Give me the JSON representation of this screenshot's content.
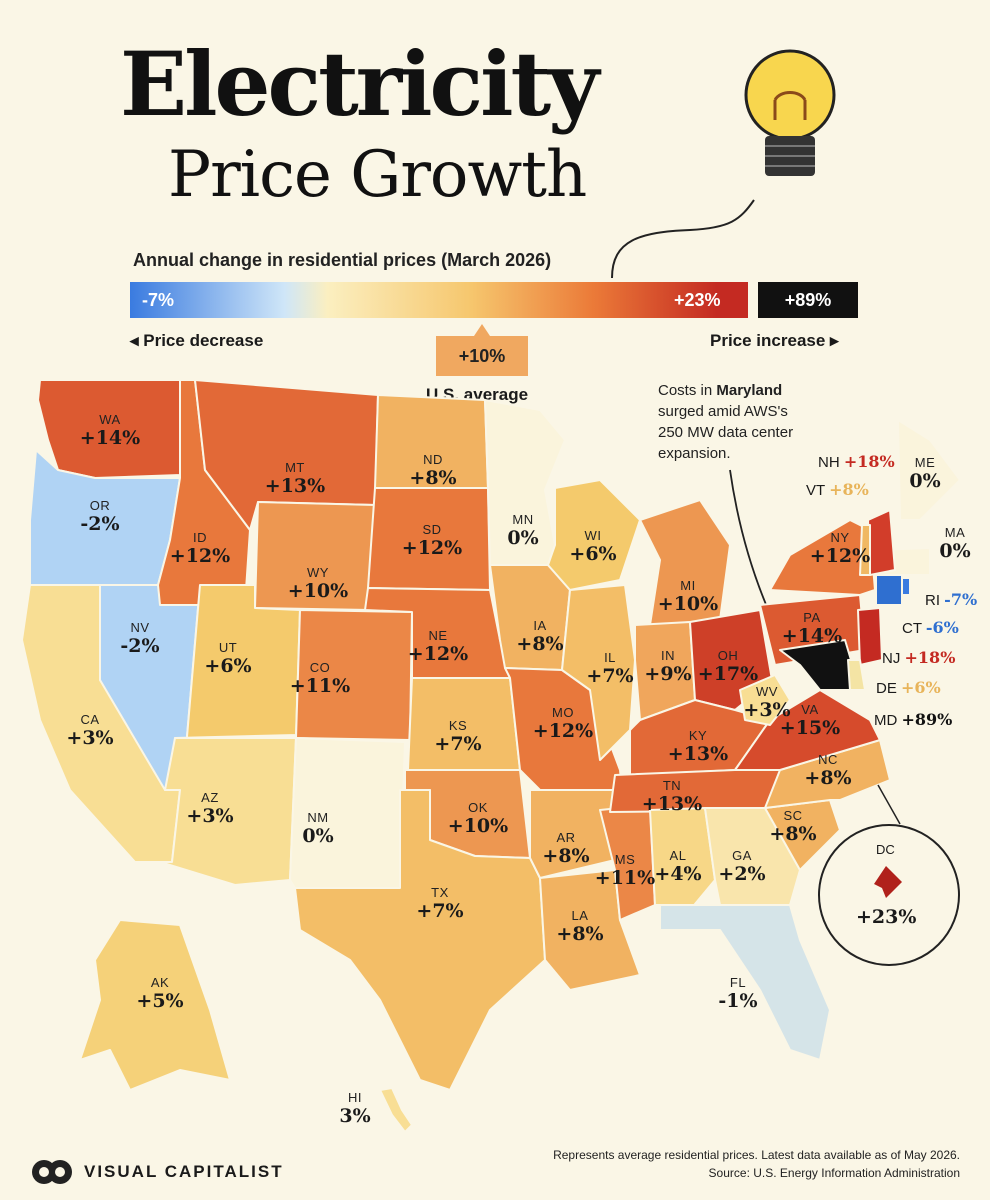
{
  "header": {
    "title_line1": "Electricity",
    "title_line2": "Price Growth",
    "subtitle": "Annual change in residential prices (March 2026)"
  },
  "legend": {
    "min_label": "-7%",
    "max_label": "+23%",
    "outlier_label": "+89%",
    "decrease_label": "◂ Price decrease",
    "increase_label": "Price increase ▸",
    "average_value": "+10%",
    "average_label": "U.S. average"
  },
  "annotation": {
    "prefix": "Costs in ",
    "state": "Maryland",
    "text": "surged amid AWS's 250 MW data center expansion."
  },
  "states": [
    {
      "abbr": "WA",
      "value": "+14%"
    },
    {
      "abbr": "OR",
      "value": "-2%"
    },
    {
      "abbr": "CA",
      "value": "+3%"
    },
    {
      "abbr": "NV",
      "value": "-2%"
    },
    {
      "abbr": "ID",
      "value": "+12%"
    },
    {
      "abbr": "MT",
      "value": "+13%"
    },
    {
      "abbr": "WY",
      "value": "+10%"
    },
    {
      "abbr": "UT",
      "value": "+6%"
    },
    {
      "abbr": "AZ",
      "value": "+3%"
    },
    {
      "abbr": "CO",
      "value": "+11%"
    },
    {
      "abbr": "NM",
      "value": "0%"
    },
    {
      "abbr": "ND",
      "value": "+8%"
    },
    {
      "abbr": "SD",
      "value": "+12%"
    },
    {
      "abbr": "NE",
      "value": "+12%"
    },
    {
      "abbr": "KS",
      "value": "+7%"
    },
    {
      "abbr": "OK",
      "value": "+10%"
    },
    {
      "abbr": "TX",
      "value": "+7%"
    },
    {
      "abbr": "MN",
      "value": "0%"
    },
    {
      "abbr": "IA",
      "value": "+8%"
    },
    {
      "abbr": "MO",
      "value": "+12%"
    },
    {
      "abbr": "AR",
      "value": "+8%"
    },
    {
      "abbr": "LA",
      "value": "+8%"
    },
    {
      "abbr": "WI",
      "value": "+6%"
    },
    {
      "abbr": "IL",
      "value": "+7%"
    },
    {
      "abbr": "MS",
      "value": "+11%"
    },
    {
      "abbr": "MI",
      "value": "+10%"
    },
    {
      "abbr": "IN",
      "value": "+9%"
    },
    {
      "abbr": "OH",
      "value": "+17%"
    },
    {
      "abbr": "KY",
      "value": "+13%"
    },
    {
      "abbr": "TN",
      "value": "+13%"
    },
    {
      "abbr": "AL",
      "value": "+4%"
    },
    {
      "abbr": "GA",
      "value": "+2%"
    },
    {
      "abbr": "FL",
      "value": "-1%"
    },
    {
      "abbr": "SC",
      "value": "+8%"
    },
    {
      "abbr": "NC",
      "value": "+8%"
    },
    {
      "abbr": "VA",
      "value": "+15%"
    },
    {
      "abbr": "WV",
      "value": "+3%"
    },
    {
      "abbr": "PA",
      "value": "+14%"
    },
    {
      "abbr": "NY",
      "value": "+12%"
    },
    {
      "abbr": "ME",
      "value": "0%"
    },
    {
      "abbr": "MA",
      "value": "0%"
    },
    {
      "abbr": "AK",
      "value": "+5%"
    },
    {
      "abbr": "HI",
      "value": "3%"
    }
  ],
  "side_labels": [
    {
      "abbr": "NH",
      "value": "+18%",
      "color": "#c42a22"
    },
    {
      "abbr": "VT",
      "value": "+8%",
      "color": "#e8b45a"
    },
    {
      "abbr": "RI",
      "value": "-7%",
      "color": "#2f6fd0"
    },
    {
      "abbr": "CT",
      "value": "-6%",
      "color": "#2f6fd0"
    },
    {
      "abbr": "NJ",
      "value": "+18%",
      "color": "#c42a22"
    },
    {
      "abbr": "DE",
      "value": "+6%",
      "color": "#e8b45a"
    },
    {
      "abbr": "MD",
      "value": "+89%",
      "color": "#111111"
    }
  ],
  "dc": {
    "abbr": "DC",
    "value": "+23%"
  },
  "footer": {
    "brand": "VISUAL CAPITALIST",
    "note_line1": "Represents average residential prices. Latest data available as of May 2026.",
    "note_line2": "Source: U.S. Energy Information Administration"
  },
  "colors": {
    "background": "#faf6e6",
    "negative": "#3a7be0",
    "neutral": "#fbefc0",
    "average": "#f0a860",
    "high": "#c42a22",
    "outlier": "#111111"
  }
}
